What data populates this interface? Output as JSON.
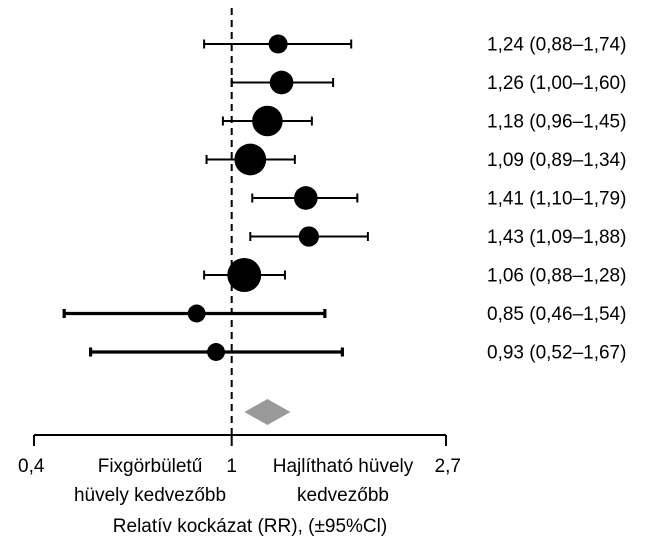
{
  "chart_data": {
    "type": "forest",
    "x_axis": {
      "scale": "log",
      "range": [
        0.4,
        2.7
      ],
      "reference_value": 1,
      "ticks": [
        {
          "value": 0.4,
          "label": "0,4"
        },
        {
          "value": 1,
          "label": "1"
        },
        {
          "value": 2.7,
          "label": "2,7"
        }
      ],
      "left_side_label_lines": [
        "Fixgörbületű",
        "hüvely kedvezőbb"
      ],
      "right_side_label_lines": [
        "Hajlítható hüvely",
        "kedvezőbb"
      ],
      "title": "Relatív kockázat (RR), (±95%Cl)"
    },
    "studies": [
      {
        "rr": 1.24,
        "ci_low": 0.88,
        "ci_high": 1.74,
        "label": "1,24 (0,88–1,74)",
        "weight": 0.35
      },
      {
        "rr": 1.26,
        "ci_low": 1.0,
        "ci_high": 1.6,
        "label": "1,26 (1,00–1,60)",
        "weight": 0.55
      },
      {
        "rr": 1.18,
        "ci_low": 0.96,
        "ci_high": 1.45,
        "label": "1,18 (0,96–1,45)",
        "weight": 0.85
      },
      {
        "rr": 1.09,
        "ci_low": 0.89,
        "ci_high": 1.34,
        "label": "1,09 (0,89–1,34)",
        "weight": 0.9
      },
      {
        "rr": 1.41,
        "ci_low": 1.1,
        "ci_high": 1.79,
        "label": "1,41 (1,10–1,79)",
        "weight": 0.55
      },
      {
        "rr": 1.43,
        "ci_low": 1.09,
        "ci_high": 1.88,
        "label": "1,43 (1,09–1,88)",
        "weight": 0.4
      },
      {
        "rr": 1.06,
        "ci_low": 0.88,
        "ci_high": 1.28,
        "label": "1,06 (0,88–1,28)",
        "weight": 1.0
      },
      {
        "rr": 0.85,
        "ci_low": 0.46,
        "ci_high": 1.54,
        "label": "0,85 (0,46–1,54)",
        "weight": 0.3
      },
      {
        "rr": 0.93,
        "ci_low": 0.52,
        "ci_high": 1.67,
        "label": "0,93 (0,52–1,67)",
        "weight": 0.3
      }
    ],
    "pooled": {
      "rr": 1.18
    },
    "colors": {
      "marker": "#000000",
      "pooled": "#999999",
      "axis": "#000000"
    }
  }
}
